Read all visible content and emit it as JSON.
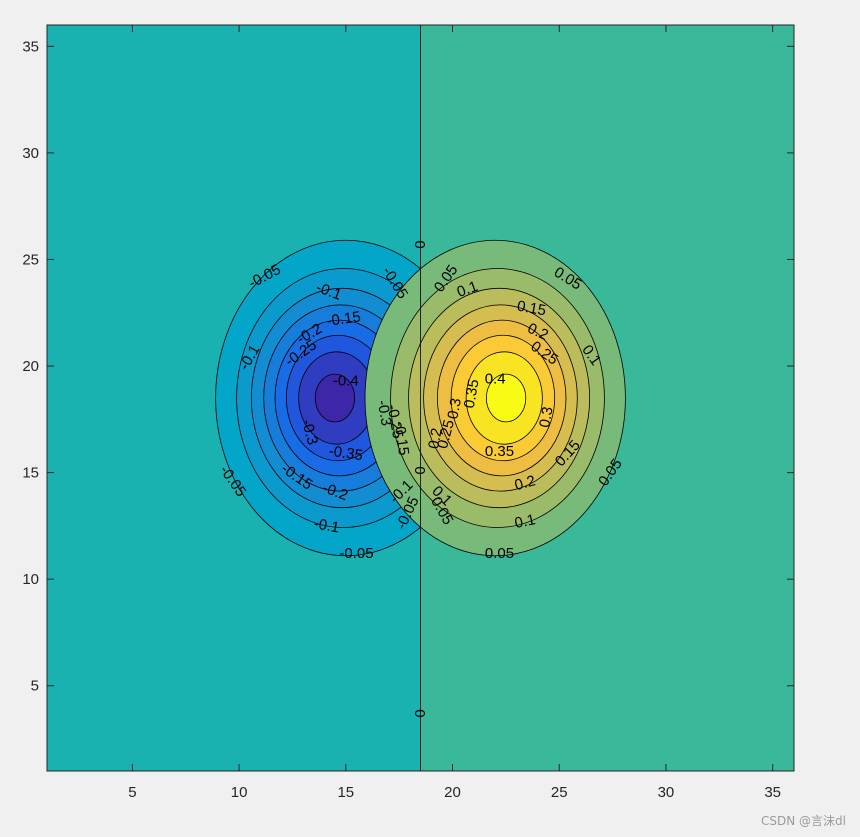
{
  "chart_data": {
    "type": "heatmap",
    "subtype": "filled-contour",
    "title": "",
    "xlabel": "",
    "ylabel": "",
    "xlim": [
      1,
      36
    ],
    "ylim": [
      1,
      36
    ],
    "x_ticks": [
      5,
      10,
      15,
      20,
      25,
      30,
      35
    ],
    "y_ticks": [
      5,
      10,
      15,
      20,
      25,
      30,
      35
    ],
    "grid": false,
    "colormap": "parula",
    "colors": {
      "min": "#3e2a90",
      "low": "#0f6ee3",
      "zero_left": "#1ab2b0",
      "zero_right": "#39b89a",
      "high": "#f7c73e",
      "max": "#f8f81a"
    },
    "contour_levels": [
      -0.4,
      -0.35,
      -0.3,
      -0.25,
      -0.2,
      -0.15,
      -0.1,
      -0.05,
      0,
      0.05,
      0.1,
      0.15,
      0.2,
      0.25,
      0.3,
      0.35,
      0.4
    ],
    "field": {
      "description": "dipole",
      "negative_peak": {
        "x": 15,
        "y": 18.5,
        "value": -0.42
      },
      "positive_peak": {
        "x": 22,
        "y": 18.5,
        "value": 0.42
      },
      "zero_line_x": 18.5
    },
    "labels": [
      {
        "text": "-0.05",
        "x": 11.2,
        "y": 24.2,
        "angle": -28
      },
      {
        "text": "-0.1",
        "x": 14.2,
        "y": 23.5,
        "angle": 20
      },
      {
        "text": "-0.05",
        "x": 17.3,
        "y": 23.9,
        "angle": 58
      },
      {
        "text": "-0.15",
        "x": 14.9,
        "y": 22.2,
        "angle": -8
      },
      {
        "text": "-0.2",
        "x": 13.3,
        "y": 21.5,
        "angle": -30
      },
      {
        "text": "-0.25",
        "x": 12.9,
        "y": 20.6,
        "angle": -35
      },
      {
        "text": "-0.1",
        "x": 10.5,
        "y": 20.4,
        "angle": -60
      },
      {
        "text": "-0.4",
        "x": 15.0,
        "y": 19.3,
        "angle": 0
      },
      {
        "text": "-0.3",
        "x": 16.8,
        "y": 17.8,
        "angle": 80
      },
      {
        "text": "-0.3",
        "x": 13.3,
        "y": 16.9,
        "angle": 75
      },
      {
        "text": "-0.35",
        "x": 15.0,
        "y": 15.9,
        "angle": 8
      },
      {
        "text": "-0.25",
        "x": 17.3,
        "y": 17.4,
        "angle": 80
      },
      {
        "text": "-0.15",
        "x": 17.6,
        "y": 16.6,
        "angle": 82
      },
      {
        "text": "-0.15",
        "x": 12.7,
        "y": 14.8,
        "angle": 35
      },
      {
        "text": "-0.05",
        "x": 9.7,
        "y": 14.6,
        "angle": 55
      },
      {
        "text": "-0.2",
        "x": 14.5,
        "y": 14.1,
        "angle": 20
      },
      {
        "text": "-0.1",
        "x": 17.6,
        "y": 14.1,
        "angle": -45
      },
      {
        "text": "-0.05",
        "x": 17.9,
        "y": 13.1,
        "angle": -65
      },
      {
        "text": "-0.1",
        "x": 14.1,
        "y": 12.5,
        "angle": 10
      },
      {
        "text": "-0.05",
        "x": 15.5,
        "y": 11.2,
        "angle": 0
      },
      {
        "text": "0",
        "x": 18.5,
        "y": 25.7,
        "angle": -90
      },
      {
        "text": "0",
        "x": 18.5,
        "y": 15.1,
        "angle": -90
      },
      {
        "text": "0",
        "x": 18.5,
        "y": 3.7,
        "angle": -90
      },
      {
        "text": "0.05",
        "x": 19.7,
        "y": 24.1,
        "angle": -55
      },
      {
        "text": "0.1",
        "x": 20.7,
        "y": 23.6,
        "angle": -20
      },
      {
        "text": "0.05",
        "x": 25.4,
        "y": 24.1,
        "angle": 32
      },
      {
        "text": "0.15",
        "x": 23.7,
        "y": 22.7,
        "angle": 10
      },
      {
        "text": "0.2",
        "x": 24.0,
        "y": 21.6,
        "angle": 25
      },
      {
        "text": "0.25",
        "x": 24.3,
        "y": 20.6,
        "angle": 35
      },
      {
        "text": "0.1",
        "x": 26.5,
        "y": 20.5,
        "angle": 55
      },
      {
        "text": "0.4",
        "x": 22.0,
        "y": 19.4,
        "angle": 0
      },
      {
        "text": "0.35",
        "x": 20.9,
        "y": 18.7,
        "angle": -80
      },
      {
        "text": "0.3",
        "x": 20.1,
        "y": 18.0,
        "angle": -80
      },
      {
        "text": "0.3",
        "x": 24.4,
        "y": 17.6,
        "angle": -80
      },
      {
        "text": "0.25",
        "x": 19.7,
        "y": 16.8,
        "angle": -75
      },
      {
        "text": "0.2",
        "x": 19.2,
        "y": 16.6,
        "angle": -80
      },
      {
        "text": "0.35",
        "x": 22.2,
        "y": 16.0,
        "angle": 0
      },
      {
        "text": "0.15",
        "x": 25.4,
        "y": 15.9,
        "angle": -48
      },
      {
        "text": "0.05",
        "x": 27.4,
        "y": 15.0,
        "angle": -55
      },
      {
        "text": "0.2",
        "x": 23.4,
        "y": 14.5,
        "angle": -15
      },
      {
        "text": "0.1",
        "x": 19.5,
        "y": 13.9,
        "angle": 45
      },
      {
        "text": "0.05",
        "x": 19.5,
        "y": 13.2,
        "angle": 60
      },
      {
        "text": "0.1",
        "x": 23.4,
        "y": 12.7,
        "angle": -12
      },
      {
        "text": "0.05",
        "x": 22.2,
        "y": 11.2,
        "angle": 0
      }
    ]
  },
  "watermark": "CSDN @言沫dl"
}
